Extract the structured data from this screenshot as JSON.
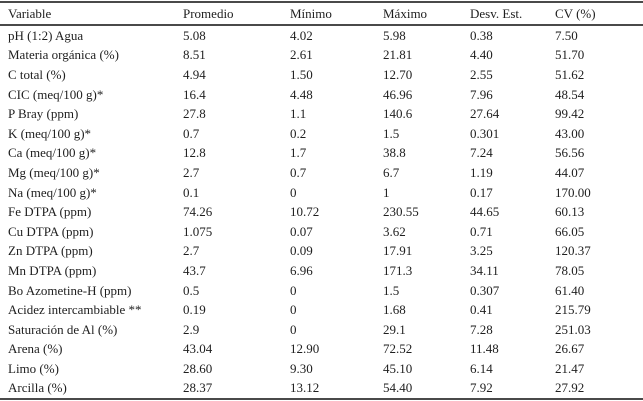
{
  "table": {
    "columns": [
      "Variable",
      "Promedio",
      "Mínimo",
      "Máximo",
      "Desv. Est.",
      "CV (%)"
    ],
    "rows": [
      {
        "variable": "pH (1:2) Agua",
        "values": [
          "5.08",
          "4.02",
          "5.98",
          "0.38",
          "7.50"
        ]
      },
      {
        "variable": "Materia orgánica (%)",
        "values": [
          "8.51",
          "2.61",
          "21.81",
          "4.40",
          "51.70"
        ]
      },
      {
        "variable": "C total (%)",
        "values": [
          "4.94",
          "1.50",
          "12.70",
          "2.55",
          "51.62"
        ]
      },
      {
        "variable": "CIC (meq/100 g)*",
        "values": [
          "16.4",
          "4.48",
          "46.96",
          "7.96",
          "48.54"
        ]
      },
      {
        "variable": "P Bray (ppm)",
        "values": [
          "27.8",
          "1.1",
          "140.6",
          "27.64",
          "99.42"
        ]
      },
      {
        "variable": "K (meq/100 g)*",
        "values": [
          "0.7",
          "0.2",
          "1.5",
          "0.301",
          "43.00"
        ]
      },
      {
        "variable": "Ca (meq/100 g)*",
        "values": [
          "12.8",
          "1.7",
          "38.8",
          "7.24",
          "56.56"
        ]
      },
      {
        "variable": "Mg (meq/100 g)*",
        "values": [
          "2.7",
          "0.7",
          "6.7",
          "1.19",
          "44.07"
        ]
      },
      {
        "variable": "Na (meq/100 g)*",
        "values": [
          "0.1",
          "0",
          "1",
          "0.17",
          "170.00"
        ]
      },
      {
        "variable": "Fe DTPA (ppm)",
        "values": [
          "74.26",
          "10.72",
          "230.55",
          "44.65",
          "60.13"
        ]
      },
      {
        "variable": "Cu DTPA (ppm)",
        "values": [
          "1.075",
          "0.07",
          "3.62",
          "0.71",
          "66.05"
        ]
      },
      {
        "variable": "Zn DTPA (ppm)",
        "values": [
          "2.7",
          "0.09",
          "17.91",
          "3.25",
          "120.37"
        ]
      },
      {
        "variable": "Mn DTPA (ppm)",
        "values": [
          "43.7",
          "6.96",
          "171.3",
          "34.11",
          "78.05"
        ]
      },
      {
        "variable": "Bo Azometine-H (ppm)",
        "values": [
          "0.5",
          "0",
          "1.5",
          "0.307",
          "61.40"
        ]
      },
      {
        "variable": "Acidez intercambiable **",
        "values": [
          "0.19",
          "0",
          "1.68",
          "0.41",
          "215.79"
        ]
      },
      {
        "variable": "Saturación de Al (%)",
        "values": [
          "2.9",
          "0",
          "29.1",
          "7.28",
          "251.03"
        ]
      },
      {
        "variable": "Arena (%)",
        "values": [
          "43.04",
          "12.90",
          "72.52",
          "11.48",
          "26.67"
        ]
      },
      {
        "variable": "Limo (%)",
        "values": [
          "28.60",
          "9.30",
          "45.10",
          "6.14",
          "21.47"
        ]
      },
      {
        "variable": "Arcilla (%)",
        "values": [
          "28.37",
          "13.12",
          "54.40",
          "7.92",
          "27.92"
        ]
      }
    ]
  },
  "colors": {
    "text": "#1e1e1e",
    "rule": "#4a4a4a",
    "background": "#ffffff"
  }
}
